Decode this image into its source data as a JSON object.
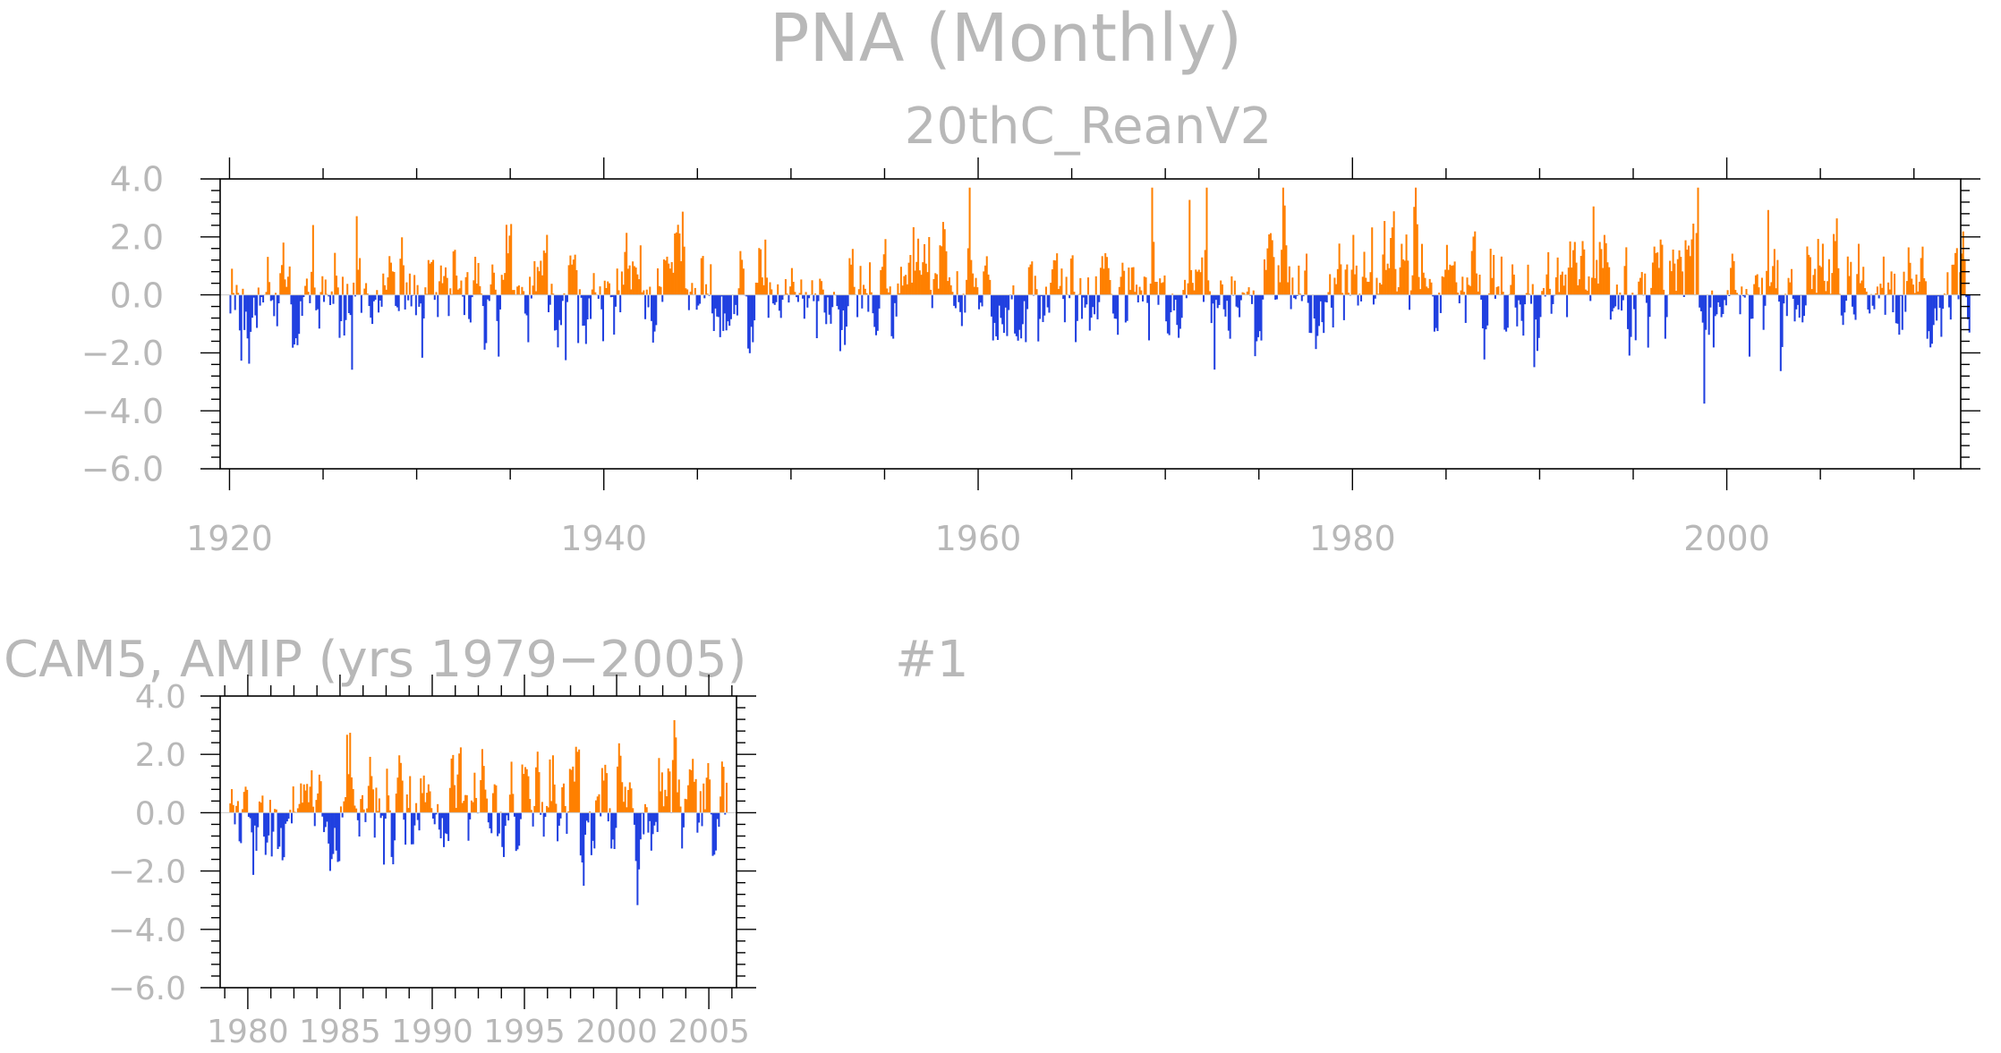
{
  "figure": {
    "title": "PNA (Monthly)",
    "panel_mark": "#1"
  },
  "colors": {
    "positive": "#ff8000",
    "negative": "#2040e0",
    "text": "#b8b8b8",
    "axis": "#000000"
  },
  "chart_data": [
    {
      "type": "bar",
      "title": "20thC_ReanV2",
      "xlabel": "",
      "ylabel": "",
      "xlim": [
        1919.5,
        2012.5
      ],
      "ylim": [
        -6.0,
        4.0
      ],
      "x_ticks": [
        1920,
        1940,
        1960,
        1980,
        2000
      ],
      "x_tick_labels": [
        "1920",
        "1940",
        "1960",
        "1980",
        "2000"
      ],
      "y_ticks": [
        -6.0,
        -4.0,
        -2.0,
        0.0,
        2.0,
        4.0
      ],
      "y_tick_labels": [
        "−6.0",
        "−4.0",
        "−2.0",
        "0.0",
        "2.0",
        "4.0"
      ],
      "grid": false,
      "frequency": "monthly",
      "start_year": 1920,
      "end_year": 2012,
      "annual_mean_index": [
        -1.0,
        -0.3,
        0.1,
        -0.4,
        0.4,
        0.3,
        0.5,
        -0.3,
        0.2,
        0.3,
        -0.1,
        0.6,
        -0.5,
        0.1,
        0.1,
        -0.2,
        0.6,
        -0.8,
        0.3,
        0.2,
        1.0,
        0.6,
        0.1,
        0.4,
        -0.1,
        0.4,
        0.2,
        -0.5,
        -0.3,
        -0.6,
        -0.4,
        0.1,
        -0.2,
        -0.1,
        -0.4,
        -0.3,
        0.2,
        0.5,
        0.1,
        0.3,
        -0.4,
        -0.6,
        0.1,
        0.2,
        -0.3,
        -0.2,
        -0.4,
        -0.2,
        0.4,
        0.7,
        -0.6,
        0.1,
        -0.4,
        -0.3,
        0.2,
        0.3,
        0.7,
        0.6,
        -0.5,
        0.4,
        0.7,
        0.6,
        1.0,
        0.3,
        0.4,
        0.5,
        0.6,
        0.2,
        -0.6,
        -0.2,
        0.3,
        0.4,
        0.5,
        0.2,
        -0.1,
        0.4,
        0.6,
        0.9,
        0.4,
        -0.3,
        0.3,
        0.5,
        0.2,
        0.1,
        -0.4,
        0.3,
        -0.2,
        0.6,
        0.4,
        -0.3,
        -0.5,
        -0.4,
        0.6
      ]
    },
    {
      "type": "bar",
      "title": "CAM5, AMIP (yrs 1979−2005)",
      "xlabel": "",
      "ylabel": "",
      "xlim": [
        1978.5,
        2006.5
      ],
      "ylim": [
        -6.0,
        4.0
      ],
      "x_ticks": [
        1980,
        1985,
        1990,
        1995,
        2000,
        2005
      ],
      "x_tick_labels": [
        "1980",
        "1985",
        "1990",
        "1995",
        "2000",
        "2005"
      ],
      "y_ticks": [
        -6.0,
        -4.0,
        -2.0,
        0.0,
        2.0,
        4.0
      ],
      "y_tick_labels": [
        "−6.0",
        "−4.0",
        "−2.0",
        "0.0",
        "2.0",
        "4.0"
      ],
      "grid": false,
      "frequency": "monthly",
      "start_year": 1979,
      "end_year": 2005,
      "annual_mean_index": [
        0.3,
        -0.5,
        -0.4,
        0.5,
        0.7,
        -0.3,
        0.6,
        0.5,
        0.4,
        0.3,
        -0.2,
        -0.3,
        0.6,
        0.7,
        0.3,
        -0.5,
        -0.4,
        0.2,
        0.9,
        -1.2,
        -0.5,
        0.4,
        -0.6,
        0.2,
        0.6,
        0.3,
        -0.3
      ]
    }
  ]
}
